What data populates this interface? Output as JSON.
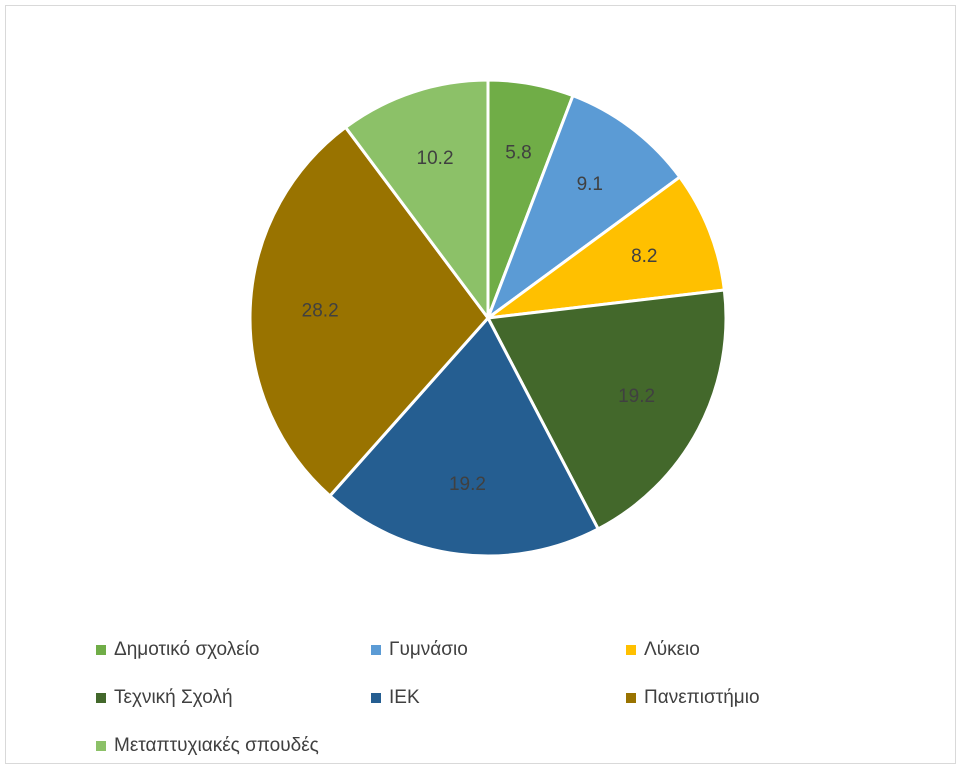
{
  "chart_data": {
    "type": "pie",
    "start_angle_deg": 0,
    "direction": "clockwise",
    "slices": [
      {
        "label": "Δημοτικό σχολείο",
        "value": 5.8,
        "color": "#70ad47"
      },
      {
        "label": "Γυμνάσιο",
        "value": 9.1,
        "color": "#5b9bd5"
      },
      {
        "label": "Λύκειο",
        "value": 8.2,
        "color": "#ffc000"
      },
      {
        "label": "Τεχνική Σχολή",
        "value": 19.2,
        "color": "#43682b"
      },
      {
        "label": "ΙΕΚ",
        "value": 19.2,
        "color": "#255e91"
      },
      {
        "label": "Πανεπιστήμιο",
        "value": 28.2,
        "color": "#997300"
      },
      {
        "label": "Μεταπτυχιακές σπουδές",
        "value": 10.2,
        "color": "#8cc168"
      }
    ],
    "data_labels": [
      "5.8",
      "9.1",
      "8.2",
      "19.2",
      "19.2",
      "28.2",
      "10.2"
    ],
    "legend_position": "bottom"
  }
}
